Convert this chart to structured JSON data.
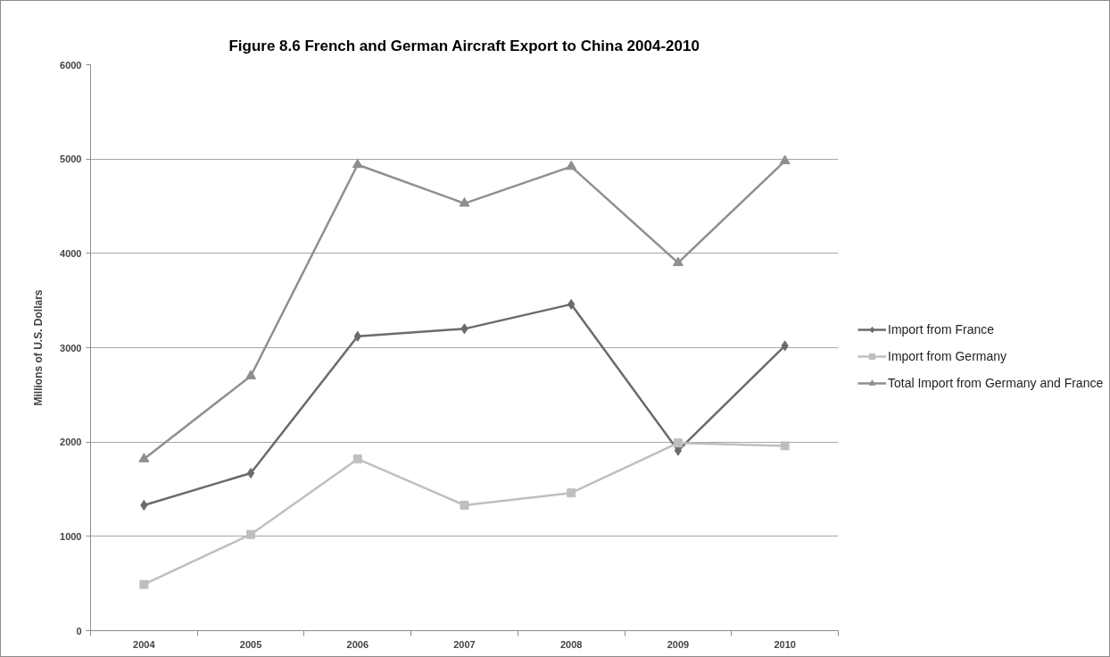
{
  "chart_data": {
    "type": "line",
    "title": "Figure 8.6 French and German Aircraft Export to China 2004-2010",
    "ylabel": "Millions of U.S. Dollars",
    "categories": [
      "2004",
      "2005",
      "2006",
      "2007",
      "2008",
      "2009",
      "2010"
    ],
    "ylim": [
      0,
      6000
    ],
    "yticks": [
      0,
      1000,
      2000,
      3000,
      4000,
      5000,
      6000
    ],
    "grid": "y",
    "legend": "right",
    "line_style": "solid",
    "series": [
      {
        "name": "Import from France",
        "color": "#6b6b6b",
        "marker": "diamond",
        "values": [
          1330,
          1670,
          3120,
          3200,
          3460,
          1910,
          3020
        ]
      },
      {
        "name": "Import from Germany",
        "color": "#bfbfbf",
        "marker": "square",
        "values": [
          490,
          1020,
          1820,
          1330,
          1460,
          1990,
          1960
        ]
      },
      {
        "name": "Total Import from Germany and France",
        "color": "#8f8f8f",
        "marker": "triangle",
        "values": [
          1820,
          2700,
          4940,
          4530,
          4920,
          3900,
          4980
        ]
      }
    ]
  }
}
